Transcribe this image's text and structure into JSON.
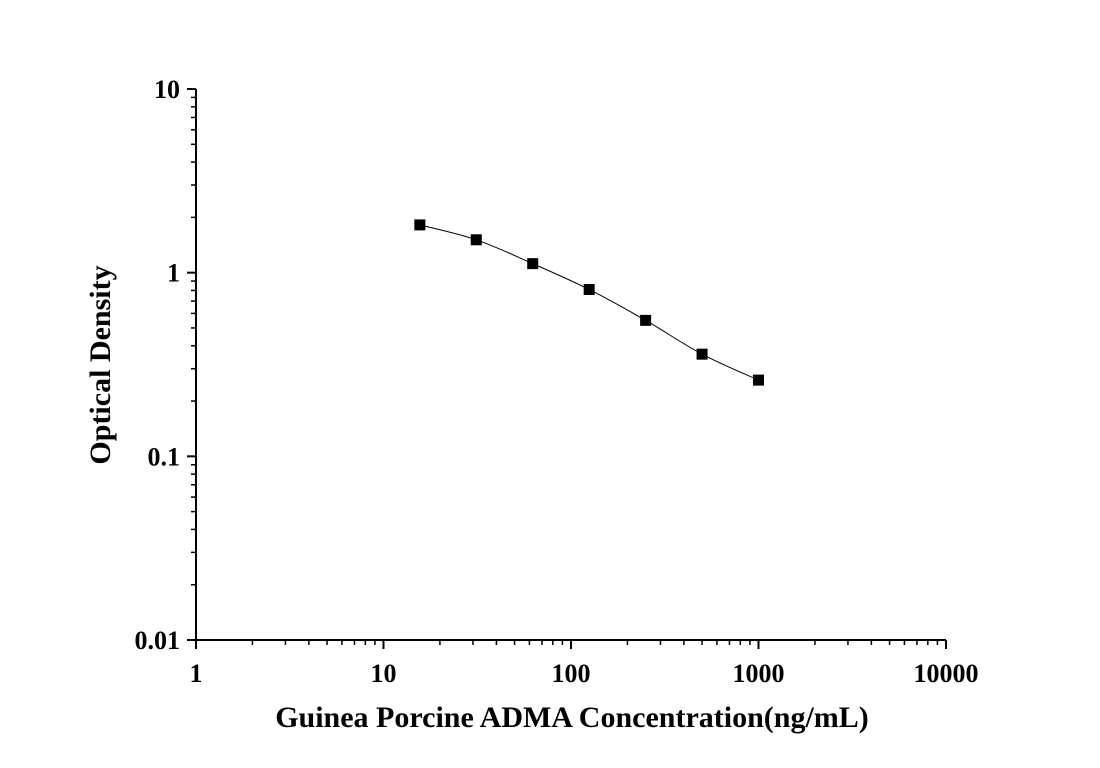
{
  "chart_data": {
    "type": "scatter",
    "title": "",
    "xlabel": "Guinea Porcine ADMA Concentration(ng/mL)",
    "ylabel": "Optical Density",
    "x_scale": "log",
    "y_scale": "log",
    "xlim": [
      1,
      10000
    ],
    "ylim": [
      0.01,
      10
    ],
    "x_ticks": [
      1,
      10,
      100,
      1000,
      10000
    ],
    "x_tick_labels": [
      "1",
      "10",
      "100",
      "1000",
      "10000"
    ],
    "y_ticks": [
      0.01,
      0.1,
      1,
      10
    ],
    "y_tick_labels": [
      "0.01",
      "0.1",
      "1",
      "10"
    ],
    "grid": false,
    "series": [
      {
        "marker": "square",
        "line": "smooth",
        "color": "#000000",
        "x": [
          15.625,
          31.25,
          62.5,
          125,
          250,
          500,
          1000
        ],
        "y": [
          1.82,
          1.51,
          1.12,
          0.81,
          0.55,
          0.36,
          0.26
        ]
      }
    ]
  }
}
